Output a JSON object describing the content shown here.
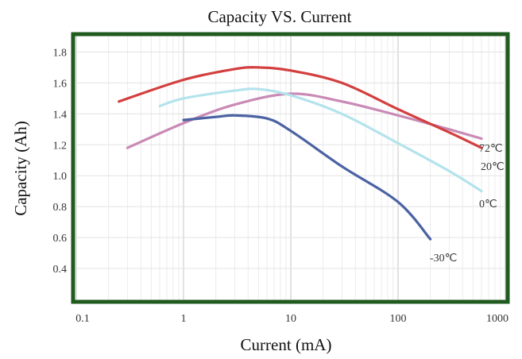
{
  "chart_data": {
    "type": "line",
    "title": "Capacity VS. Current",
    "xlabel": "Current (mA)",
    "ylabel": "Capacity (Ah)",
    "x_scale": "log",
    "xlim": [
      0.1,
      1000
    ],
    "ylim": [
      0.2,
      1.9
    ],
    "x_ticks": [
      {
        "value": 0.1,
        "label": "0.1"
      },
      {
        "value": 1,
        "label": "1"
      },
      {
        "value": 10,
        "label": "10"
      },
      {
        "value": 100,
        "label": "100"
      },
      {
        "value": 1000,
        "label": "1000"
      }
    ],
    "y_ticks": [
      {
        "value": 0.4,
        "label": "0.4"
      },
      {
        "value": 0.6,
        "label": "0.6"
      },
      {
        "value": 0.8,
        "label": "0.8"
      },
      {
        "value": 1.0,
        "label": "1.0"
      },
      {
        "value": 1.2,
        "label": "1.2"
      },
      {
        "value": 1.4,
        "label": "1.4"
      },
      {
        "value": 1.6,
        "label": "1.6"
      },
      {
        "value": 1.8,
        "label": "1.8"
      }
    ],
    "grid": true,
    "frame_color": "#1f5a1f",
    "series": [
      {
        "label": "72℃",
        "color": "#c98ab5",
        "points": [
          [
            0.3,
            1.18
          ],
          [
            1,
            1.34
          ],
          [
            3,
            1.46
          ],
          [
            10,
            1.53
          ],
          [
            30,
            1.48
          ],
          [
            100,
            1.39
          ],
          [
            300,
            1.3
          ],
          [
            600,
            1.24
          ]
        ]
      },
      {
        "label": "20℃",
        "color": "#d33f3f",
        "points": [
          [
            0.25,
            1.48
          ],
          [
            1,
            1.62
          ],
          [
            3,
            1.69
          ],
          [
            5,
            1.7
          ],
          [
            10,
            1.68
          ],
          [
            30,
            1.6
          ],
          [
            100,
            1.43
          ],
          [
            300,
            1.28
          ],
          [
            600,
            1.18
          ]
        ]
      },
      {
        "label": "0℃",
        "color": "#b3e3ec",
        "points": [
          [
            0.6,
            1.45
          ],
          [
            1,
            1.5
          ],
          [
            3,
            1.55
          ],
          [
            5,
            1.56
          ],
          [
            10,
            1.52
          ],
          [
            30,
            1.4
          ],
          [
            100,
            1.21
          ],
          [
            300,
            1.03
          ],
          [
            600,
            0.9
          ]
        ]
      },
      {
        "label": "-30℃",
        "color": "#4b62a3",
        "points": [
          [
            1,
            1.36
          ],
          [
            2,
            1.38
          ],
          [
            3,
            1.39
          ],
          [
            6,
            1.37
          ],
          [
            10,
            1.29
          ],
          [
            30,
            1.06
          ],
          [
            100,
            0.83
          ],
          [
            200,
            0.59
          ]
        ]
      }
    ]
  }
}
